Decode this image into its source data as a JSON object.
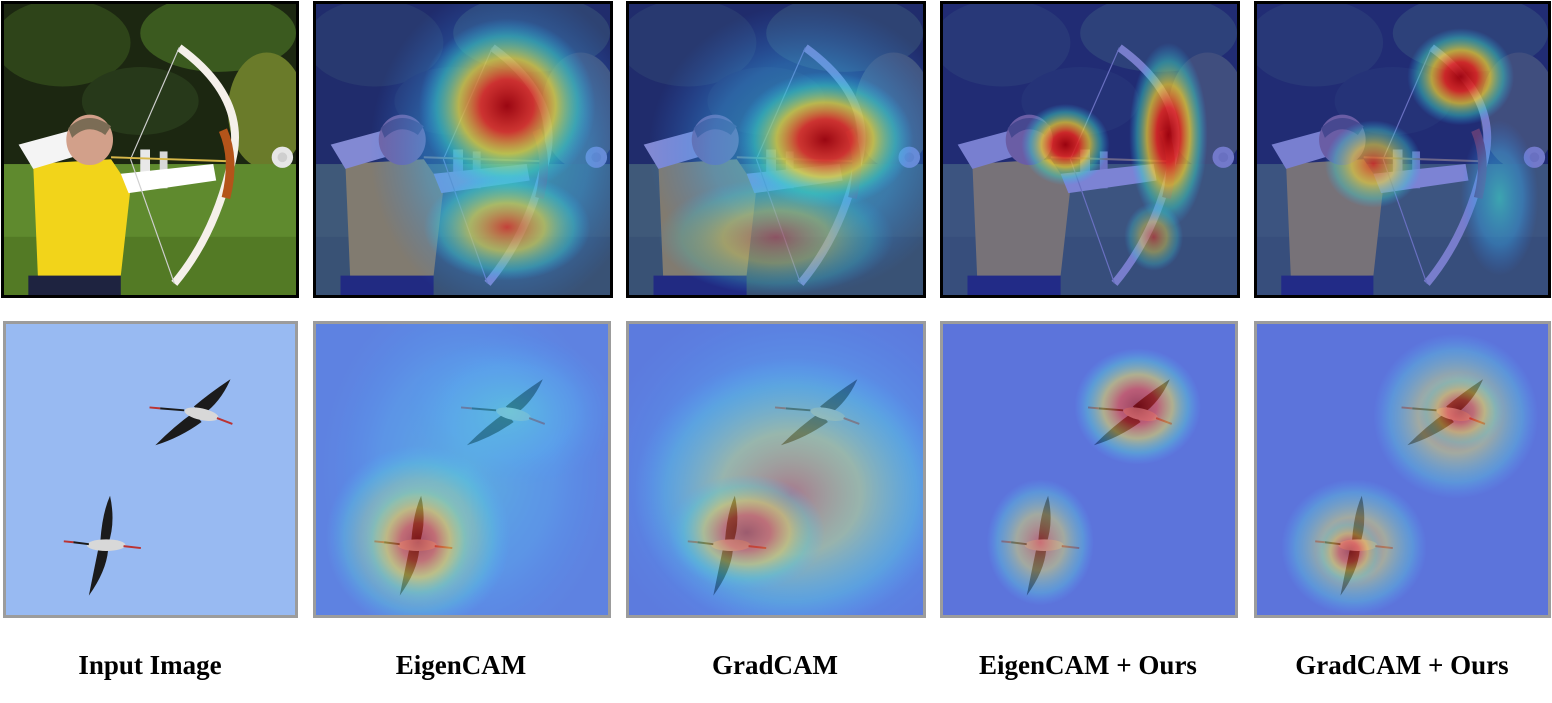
{
  "columns": [
    {
      "id": "input",
      "caption": "Input Image"
    },
    {
      "id": "eigencam",
      "caption": "EigenCAM"
    },
    {
      "id": "gradcam",
      "caption": "GradCAM"
    },
    {
      "id": "eigencam_ours",
      "caption": "EigenCAM + Ours"
    },
    {
      "id": "gradcam_ours",
      "caption": "GradCAM + Ours"
    }
  ],
  "rows": [
    {
      "id": "archer",
      "subject": "archer-with-bow"
    },
    {
      "id": "storks",
      "subject": "two-flying-storks"
    }
  ],
  "colors": {
    "grass": "#5f8a2e",
    "forest": "#1f2a12",
    "shirt": "#f2d41a",
    "sky": "#98baf2",
    "heat_low": "#3d4fd6",
    "heat_high": "#b0000f"
  }
}
